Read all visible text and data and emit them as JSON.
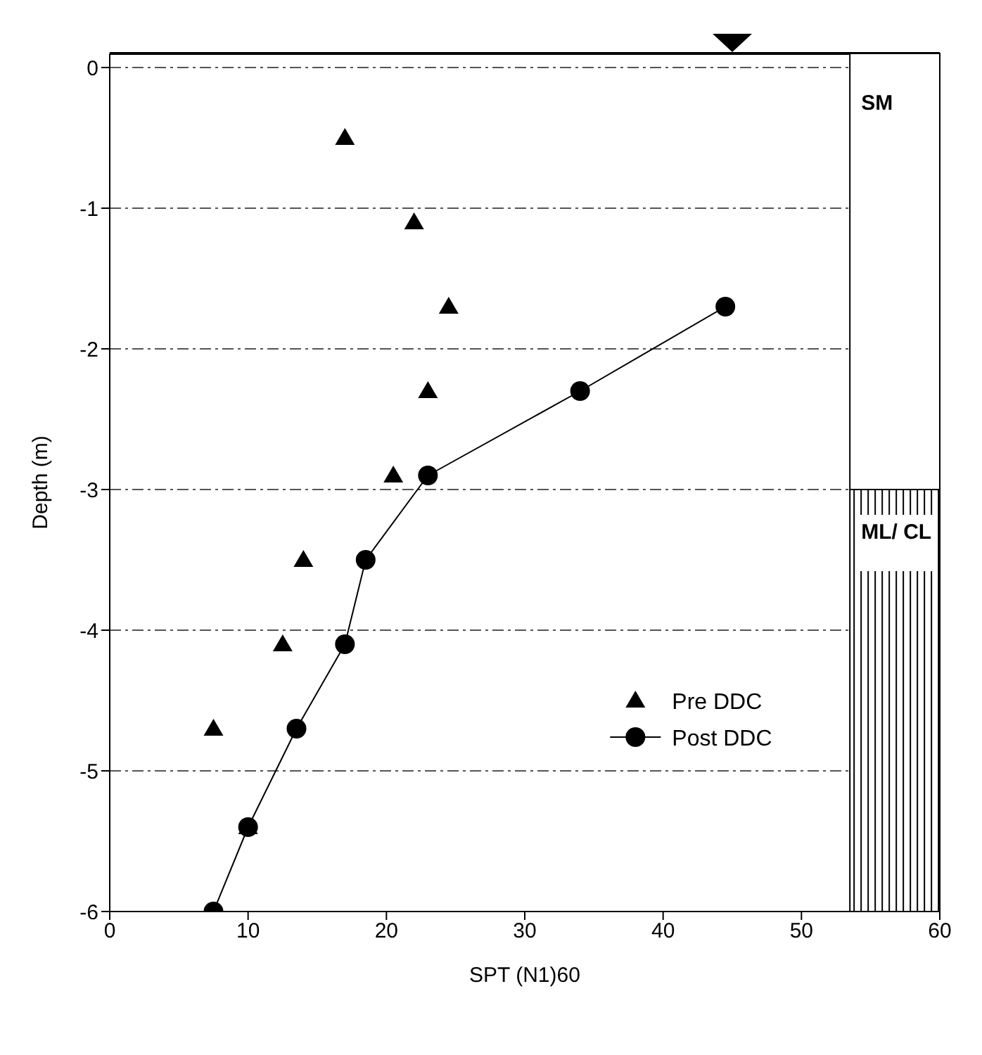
{
  "chart_data": {
    "type": "scatter",
    "xlabel": "SPT (N1)60",
    "ylabel": "Depth (m)",
    "xlim": [
      0,
      60
    ],
    "ylim": [
      -6,
      0.1
    ],
    "xticks": [
      0,
      10,
      20,
      30,
      40,
      50,
      60
    ],
    "yticks": [
      0,
      -1,
      -2,
      -3,
      -4,
      -5,
      -6
    ],
    "grid": "y",
    "legend": "right",
    "annotations": [
      "SM",
      "ML/ CL"
    ],
    "series": [
      {
        "name": "Pre DDC",
        "type": "scatter",
        "marker": "triangle",
        "color": "#000000",
        "x": [
          17,
          22,
          24.5,
          23,
          20.5,
          14,
          12.5,
          7.5,
          10
        ],
        "values": [
          -0.5,
          -1.1,
          -1.7,
          -2.3,
          -2.9,
          -3.5,
          -4.1,
          -4.7,
          -5.4
        ]
      },
      {
        "name": "Post DDC",
        "type": "line",
        "marker": "circle",
        "color": "#000000",
        "x": [
          44.5,
          34,
          23,
          18.5,
          17,
          13.5,
          10,
          7.5
        ],
        "values": [
          -1.7,
          -2.3,
          -2.9,
          -3.5,
          -4.1,
          -4.7,
          -5.4,
          -6.0
        ]
      }
    ]
  }
}
